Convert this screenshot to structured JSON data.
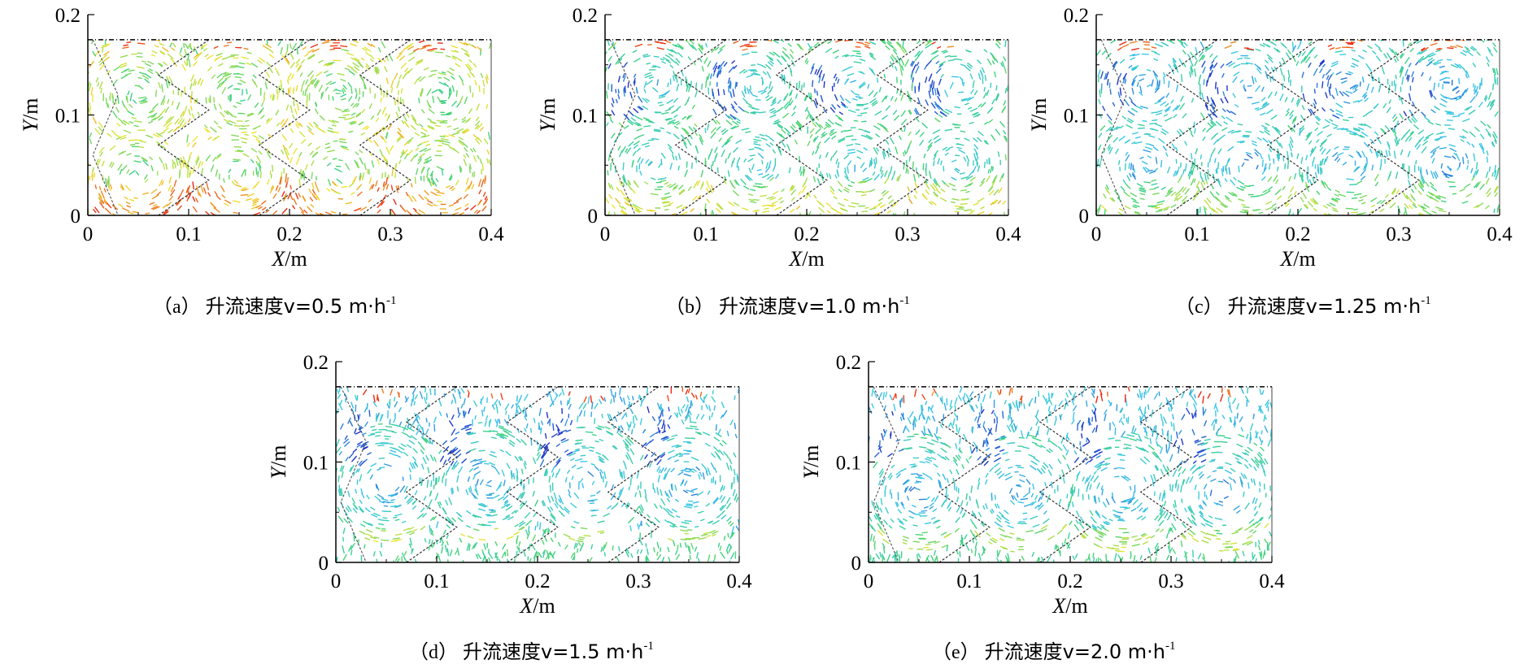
{
  "chart_data": [
    {
      "type": "vector-field",
      "caption": {
        "label": "（a）",
        "text": "升流速度v=0.5 m·h",
        "sup": "-1"
      },
      "xlabel": {
        "var": "X",
        "unit": "/m"
      },
      "ylabel": {
        "var": "Y",
        "unit": "/m"
      },
      "xlim": [
        0,
        0.4
      ],
      "ylim": [
        0,
        0.2
      ],
      "xticks": [
        "0",
        "0.1",
        "0.2",
        "0.3",
        "0.4"
      ],
      "yticks": [
        "0",
        "0.1",
        "0.2"
      ],
      "fluid_surface_y": 0.175,
      "upflow_velocity": 0.5,
      "baffle_x_positions": [
        0.1,
        0.2,
        0.3
      ],
      "vortex_centers": [
        [
          0.05,
          0.12
        ],
        [
          0.15,
          0.12
        ],
        [
          0.25,
          0.12
        ],
        [
          0.35,
          0.12
        ],
        [
          0.05,
          0.04
        ],
        [
          0.15,
          0.04
        ],
        [
          0.25,
          0.04
        ],
        [
          0.35,
          0.04
        ]
      ],
      "dominant_colors": [
        "#37d07a",
        "#c7e34a",
        "#f2e53a",
        "#55c9e8"
      ]
    },
    {
      "type": "vector-field",
      "caption": {
        "label": "（b）",
        "text": "升流速度v=1.0 m·h",
        "sup": "-1"
      },
      "xlabel": {
        "var": "X",
        "unit": "/m"
      },
      "ylabel": {
        "var": "Y",
        "unit": "/m"
      },
      "xlim": [
        0,
        0.4
      ],
      "ylim": [
        0,
        0.2
      ],
      "xticks": [
        "0",
        "0.1",
        "0.2",
        "0.3",
        "0.4"
      ],
      "yticks": [
        "0",
        "0.1",
        "0.2"
      ],
      "fluid_surface_y": 0.175,
      "upflow_velocity": 1.0,
      "baffle_x_positions": [
        0.1,
        0.2,
        0.3
      ],
      "vortex_centers": [
        [
          0.05,
          0.13
        ],
        [
          0.15,
          0.13
        ],
        [
          0.25,
          0.13
        ],
        [
          0.35,
          0.13
        ],
        [
          0.05,
          0.05
        ],
        [
          0.15,
          0.05
        ],
        [
          0.25,
          0.05
        ],
        [
          0.35,
          0.05
        ]
      ],
      "dominant_colors": [
        "#2fd7df",
        "#3fd07a",
        "#b8e24a",
        "#1f57d6"
      ]
    },
    {
      "type": "vector-field",
      "caption": {
        "label": "（c）",
        "text": "升流速度v=1.25 m·h",
        "sup": "-1"
      },
      "xlabel": {
        "var": "X",
        "unit": "/m"
      },
      "ylabel": {
        "var": "Y",
        "unit": "/m"
      },
      "xlim": [
        0,
        0.4
      ],
      "ylim": [
        0,
        0.2
      ],
      "xticks": [
        "0",
        "0.1",
        "0.2",
        "0.3",
        "0.4"
      ],
      "yticks": [
        "0",
        "0.1",
        "0.2"
      ],
      "fluid_surface_y": 0.175,
      "upflow_velocity": 1.25,
      "baffle_x_positions": [
        0.1,
        0.2,
        0.3
      ],
      "vortex_centers": [
        [
          0.05,
          0.13
        ],
        [
          0.15,
          0.13
        ],
        [
          0.25,
          0.13
        ],
        [
          0.35,
          0.13
        ],
        [
          0.05,
          0.05
        ],
        [
          0.15,
          0.05
        ],
        [
          0.25,
          0.05
        ],
        [
          0.35,
          0.05
        ]
      ],
      "dominant_colors": [
        "#6fe2f0",
        "#3fd07a",
        "#1f3fd0",
        "#f03a1a"
      ]
    },
    {
      "type": "vector-field",
      "caption": {
        "label": "（d）",
        "text": "升流速度v=1.5 m·h",
        "sup": "-1"
      },
      "xlabel": {
        "var": "X",
        "unit": "/m"
      },
      "ylabel": {
        "var": "Y",
        "unit": "/m"
      },
      "xlim": [
        0,
        0.4
      ],
      "ylim": [
        0,
        0.2
      ],
      "xticks": [
        "0",
        "0.1",
        "0.2",
        "0.3",
        "0.4"
      ],
      "yticks": [
        "0",
        "0.1",
        "0.2"
      ],
      "fluid_surface_y": 0.175,
      "upflow_velocity": 1.5,
      "baffle_x_positions": [
        0.1,
        0.2,
        0.3
      ],
      "vortex_centers": [
        [
          0.05,
          0.08
        ],
        [
          0.15,
          0.08
        ],
        [
          0.25,
          0.08
        ],
        [
          0.35,
          0.08
        ]
      ],
      "dominant_colors": [
        "#2fd7df",
        "#3fd07a",
        "#1f4fd6",
        "#f0501a"
      ]
    },
    {
      "type": "vector-field",
      "caption": {
        "label": "（e）",
        "text": "升流速度v=2.0 m·h",
        "sup": "-1"
      },
      "xlabel": {
        "var": "X",
        "unit": "/m"
      },
      "ylabel": {
        "var": "Y",
        "unit": "/m"
      },
      "xlim": [
        0,
        0.4
      ],
      "ylim": [
        0,
        0.2
      ],
      "xticks": [
        "0",
        "0.1",
        "0.2",
        "0.3",
        "0.4"
      ],
      "yticks": [
        "0",
        "0.1",
        "0.2"
      ],
      "fluid_surface_y": 0.175,
      "upflow_velocity": 2.0,
      "baffle_x_positions": [
        0.1,
        0.2,
        0.3
      ],
      "vortex_centers": [
        [
          0.05,
          0.07
        ],
        [
          0.15,
          0.07
        ],
        [
          0.25,
          0.07
        ],
        [
          0.35,
          0.07
        ]
      ],
      "dominant_colors": [
        "#2fd7df",
        "#3fd07a",
        "#1f4fd6",
        "#e8201a"
      ]
    }
  ]
}
